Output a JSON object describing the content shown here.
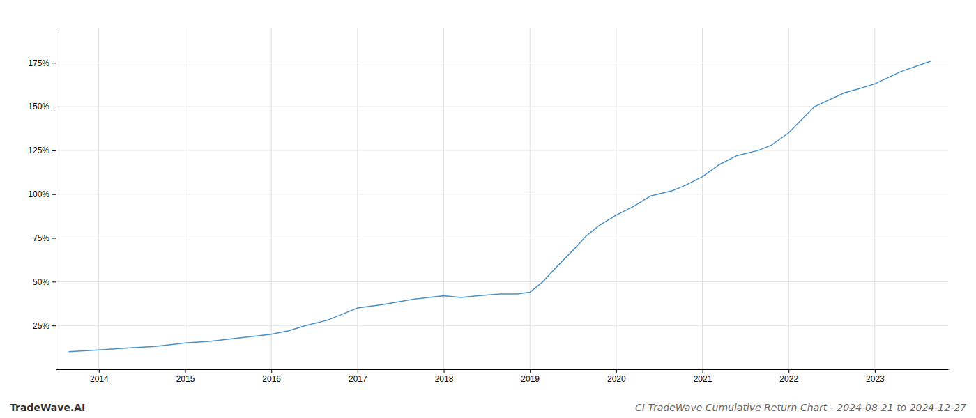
{
  "chart_data": {
    "type": "line",
    "title": "CI TradeWave Cumulative Return Chart - 2024-08-21 to 2024-12-27",
    "annotations": [
      "TradeWave.AI"
    ],
    "color": "#4a90c4",
    "grid": true,
    "x": [
      2013.65,
      2014.0,
      2014.3,
      2014.65,
      2015.0,
      2015.3,
      2015.65,
      2016.0,
      2016.2,
      2016.4,
      2016.65,
      2017.0,
      2017.3,
      2017.65,
      2018.0,
      2018.2,
      2018.4,
      2018.65,
      2018.75,
      2018.85,
      2019.0,
      2019.15,
      2019.3,
      2019.5,
      2019.65,
      2019.8,
      2020.0,
      2020.2,
      2020.4,
      2020.65,
      2020.8,
      2021.0,
      2021.2,
      2021.4,
      2021.65,
      2021.8,
      2022.0,
      2022.3,
      2022.65,
      2022.8,
      2023.0,
      2023.3,
      2023.65
    ],
    "values": [
      0.1,
      0.11,
      0.12,
      0.13,
      0.15,
      0.16,
      0.18,
      0.2,
      0.22,
      0.25,
      0.28,
      0.35,
      0.37,
      0.4,
      0.42,
      0.41,
      0.42,
      0.43,
      0.43,
      0.43,
      0.44,
      0.5,
      0.58,
      0.68,
      0.76,
      0.82,
      0.88,
      0.93,
      0.99,
      1.02,
      1.05,
      1.1,
      1.17,
      1.22,
      1.25,
      1.28,
      1.35,
      1.5,
      1.58,
      1.6,
      1.63,
      1.7,
      1.76
    ],
    "xlim": [
      2013.5,
      2023.85
    ],
    "xticks": [
      2014,
      2015,
      2016,
      2017,
      2018,
      2019,
      2020,
      2021,
      2022,
      2023
    ],
    "ylim": [
      0.0,
      1.95
    ],
    "yticks": [
      {
        "value": 0.25,
        "label": "25%"
      },
      {
        "value": 0.5,
        "label": "50%"
      },
      {
        "value": 0.75,
        "label": "75%"
      },
      {
        "value": 1.0,
        "label": "100%"
      },
      {
        "value": 1.25,
        "label": "125%"
      },
      {
        "value": 1.5,
        "label": "150%"
      },
      {
        "value": 1.75,
        "label": "175%"
      }
    ]
  }
}
